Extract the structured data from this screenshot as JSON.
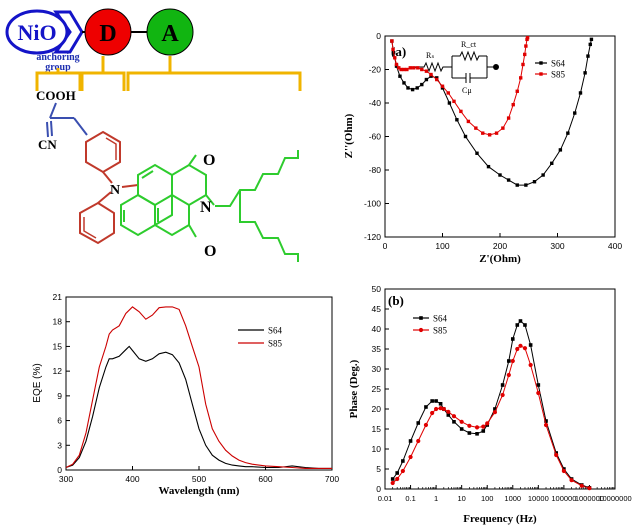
{
  "scheme": {
    "nio": "NiO",
    "donor": "D",
    "acceptor": "A",
    "anchoring": [
      "anchoring",
      "group"
    ],
    "cooh": "COOH",
    "cn": "CN",
    "n1": "N",
    "n2": "N",
    "o1": "O",
    "o2": "O",
    "colors": {
      "nio": "#1414c8",
      "donor": "#ee0000",
      "acceptor": "#11b511",
      "bracket": "#f0b400",
      "anchor_bonds": "#3a4fb0",
      "donor_bonds": "#c0392b",
      "acceptor_bonds": "#2ecc2e"
    }
  },
  "circuit": {
    "rs": "Rₛ",
    "rct": "R_ct",
    "cu": "Cμ"
  },
  "chart_data": [
    {
      "type": "scatter",
      "panel": "(a)",
      "xlabel": "Z'(Ohm)",
      "ylabel": "Z''(Ohm)",
      "xlim": [
        0,
        400
      ],
      "ylim": [
        -120,
        0
      ],
      "xticks": [
        "0",
        "100",
        "200",
        "300",
        "400"
      ],
      "yticks": [
        "0",
        "-20",
        "-40",
        "-60",
        "-80",
        "-100",
        "-120"
      ],
      "legend_position": "top-right",
      "series": [
        {
          "name": "S64",
          "color": "#000000",
          "marker": "square",
          "x": [
            12,
            15,
            20,
            26,
            33,
            40,
            48,
            56,
            64,
            72,
            80,
            90,
            100,
            112,
            125,
            140,
            160,
            180,
            200,
            215,
            230,
            245,
            260,
            275,
            290,
            305,
            318,
            330,
            340,
            348,
            353,
            357,
            359
          ],
          "y": [
            -3,
            -10,
            -18,
            -24,
            -28,
            -31,
            -32,
            -31,
            -29,
            -26,
            -24,
            -25,
            -31,
            -40,
            -50,
            -60,
            -70,
            -78,
            -83,
            -86,
            -89,
            -89,
            -87,
            -83,
            -76,
            -68,
            -58,
            -46,
            -34,
            -22,
            -12,
            -5,
            -2
          ]
        },
        {
          "name": "S85",
          "color": "#e00000",
          "marker": "square",
          "x": [
            12,
            14,
            17,
            20,
            24,
            28,
            33,
            38,
            44,
            50,
            57,
            64,
            72,
            80,
            90,
            100,
            110,
            120,
            132,
            145,
            158,
            170,
            182,
            194,
            205,
            215,
            223,
            230,
            236,
            240,
            243,
            245,
            247,
            248
          ],
          "y": [
            -3,
            -8,
            -13,
            -17,
            -19,
            -20,
            -20,
            -20,
            -19,
            -19,
            -19,
            -20,
            -21,
            -23,
            -26,
            -30,
            -34,
            -39,
            -45,
            -51,
            -55,
            -58,
            -59,
            -58,
            -55,
            -49,
            -41,
            -33,
            -25,
            -17,
            -11,
            -6,
            -2,
            -1
          ]
        }
      ]
    },
    {
      "type": "line",
      "xlabel": "Wavelength (nm)",
      "ylabel": "EQE (%)",
      "xlim": [
        300,
        700
      ],
      "ylim": [
        0,
        21
      ],
      "xticks": [
        "300",
        "400",
        "500",
        "600",
        "700"
      ],
      "yticks": [
        "0",
        "3",
        "6",
        "9",
        "12",
        "15",
        "18",
        "21"
      ],
      "legend_position": "right",
      "series": [
        {
          "name": "S64",
          "color": "#000000",
          "x": [
            300,
            310,
            320,
            330,
            340,
            350,
            360,
            365,
            370,
            380,
            390,
            395,
            400,
            410,
            420,
            430,
            440,
            450,
            460,
            470,
            480,
            490,
            500,
            510,
            520,
            530,
            540,
            550,
            560,
            570,
            580,
            600,
            620,
            640,
            660,
            680,
            700
          ],
          "y": [
            0.3,
            0.6,
            1.5,
            3.5,
            6.5,
            10,
            12.5,
            13.5,
            13.5,
            13.8,
            14.6,
            15,
            14.5,
            13.5,
            13.2,
            13.5,
            14.1,
            14.3,
            14,
            13,
            11,
            8,
            5,
            3,
            1.8,
            1.2,
            0.8,
            0.6,
            0.5,
            0.4,
            0.4,
            0.3,
            0.3,
            0.5,
            0.3,
            0.2,
            0.2
          ]
        },
        {
          "name": "S85",
          "color": "#cc0000",
          "x": [
            300,
            310,
            320,
            330,
            340,
            350,
            360,
            365,
            370,
            380,
            390,
            400,
            410,
            420,
            430,
            440,
            450,
            460,
            470,
            480,
            490,
            500,
            510,
            520,
            530,
            540,
            550,
            560,
            570,
            580,
            600,
            620,
            640,
            660,
            680,
            700
          ],
          "y": [
            0.3,
            0.7,
            1.8,
            4.5,
            8.5,
            12.5,
            15,
            16.5,
            17,
            17.5,
            19,
            19.8,
            19.2,
            18.3,
            18.8,
            19.7,
            19.8,
            19.8,
            19.5,
            17.5,
            15,
            12.5,
            8,
            5,
            3.5,
            2.4,
            1.7,
            1.2,
            0.9,
            0.7,
            0.5,
            0.4,
            0.3,
            0.2,
            0.2,
            0.2
          ]
        }
      ]
    },
    {
      "type": "line",
      "panel": "(b)",
      "xlabel": "Frequency (Hz)",
      "ylabel": "Phase (Deg.)",
      "xscale": "log",
      "xlim": [
        0.01,
        10000000
      ],
      "ylim": [
        0,
        50
      ],
      "xticks": [
        "0.01",
        "0.1",
        "1",
        "10",
        "100",
        "1000",
        "10000",
        "100000",
        "1000000",
        "10000000"
      ],
      "yticks": [
        "0",
        "5",
        "10",
        "15",
        "20",
        "25",
        "30",
        "35",
        "40",
        "45",
        "50"
      ],
      "legend_position": "top-left",
      "series": [
        {
          "name": "S64",
          "color": "#000000",
          "marker": "square",
          "x": [
            0.02,
            0.03,
            0.05,
            0.1,
            0.2,
            0.4,
            0.7,
            1,
            1.5,
            2,
            3,
            5,
            10,
            20,
            40,
            70,
            100,
            200,
            400,
            700,
            1000,
            1500,
            2000,
            3000,
            5000,
            10000,
            20000,
            50000,
            100000,
            200000,
            500000,
            1000000
          ],
          "y": [
            2.5,
            4,
            7,
            12,
            16.5,
            20.5,
            22,
            22,
            21.3,
            20,
            18.5,
            16.8,
            15,
            14,
            13.8,
            14.5,
            16,
            20,
            26,
            32,
            37.5,
            41,
            42,
            41,
            36,
            26,
            17,
            9,
            5,
            2.5,
            1,
            0.3
          ]
        },
        {
          "name": "S85",
          "color": "#e00000",
          "marker": "circle",
          "x": [
            0.02,
            0.03,
            0.05,
            0.1,
            0.2,
            0.4,
            0.7,
            1,
            1.5,
            2,
            3,
            5,
            10,
            20,
            40,
            70,
            100,
            200,
            400,
            700,
            1000,
            1500,
            2000,
            3000,
            5000,
            10000,
            20000,
            50000,
            100000,
            200000,
            500000,
            1000000
          ],
          "y": [
            1.5,
            2.5,
            4.5,
            8,
            12,
            16,
            19,
            20,
            20.2,
            20,
            19.3,
            18.2,
            16.8,
            15.8,
            15.4,
            15.6,
            16.4,
            19.2,
            23.5,
            28.5,
            32,
            35,
            35.8,
            35.2,
            31,
            24,
            16,
            8.5,
            4.5,
            2.2,
            0.8,
            0.2
          ]
        }
      ]
    }
  ]
}
